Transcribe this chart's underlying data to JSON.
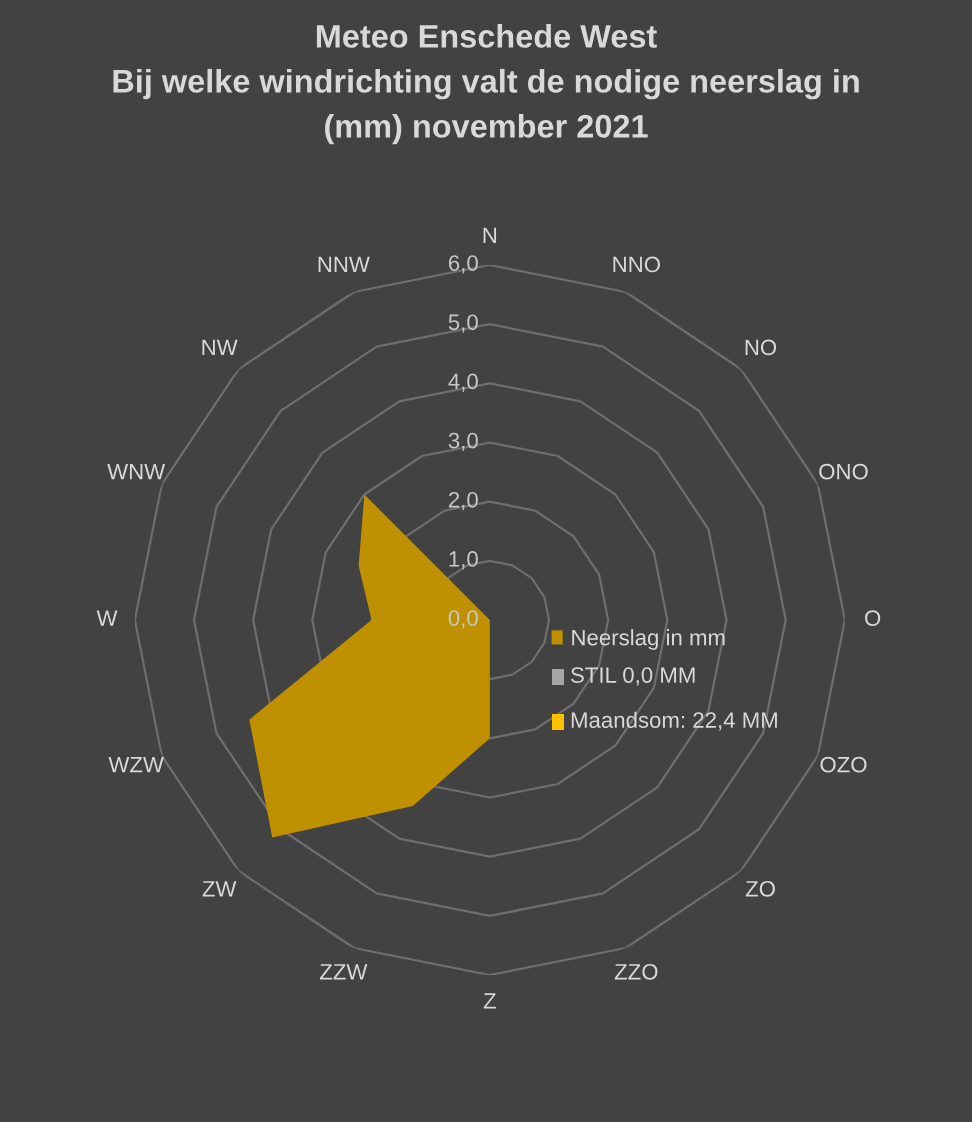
{
  "chart_data": {
    "type": "radar",
    "title": "Meteo Enschede West\nBij welke windrichting valt de nodige neerslag in\n(mm) november 2021",
    "categories": [
      "N",
      "NNO",
      "NO",
      "ONO",
      "O",
      "OZO",
      "ZO",
      "ZZO",
      "Z",
      "ZZW",
      "ZW",
      "WZW",
      "W",
      "WNW",
      "NW",
      "NNW"
    ],
    "series": [
      {
        "name": "Neerslag in mm",
        "type": "area",
        "color": "#bf9000",
        "values": [
          0,
          0,
          0,
          0,
          0,
          0,
          0,
          0,
          2.0,
          3.4,
          5.2,
          4.4,
          2.0,
          2.4,
          3.0,
          0
        ]
      }
    ],
    "annotations": [
      "STIL 0,0 MM",
      "Maandsom: 22,4 MM"
    ],
    "ylim": [
      0,
      6
    ],
    "yticks": [
      {
        "value": 0,
        "label": "0,0"
      },
      {
        "value": 1,
        "label": "1,0"
      },
      {
        "value": 2,
        "label": "2,0"
      },
      {
        "value": 3,
        "label": "3,0"
      },
      {
        "value": 4,
        "label": "4,0"
      },
      {
        "value": 5,
        "label": "5,0"
      },
      {
        "value": 6,
        "label": "6,0"
      }
    ],
    "grid": true,
    "legend": "right"
  }
}
